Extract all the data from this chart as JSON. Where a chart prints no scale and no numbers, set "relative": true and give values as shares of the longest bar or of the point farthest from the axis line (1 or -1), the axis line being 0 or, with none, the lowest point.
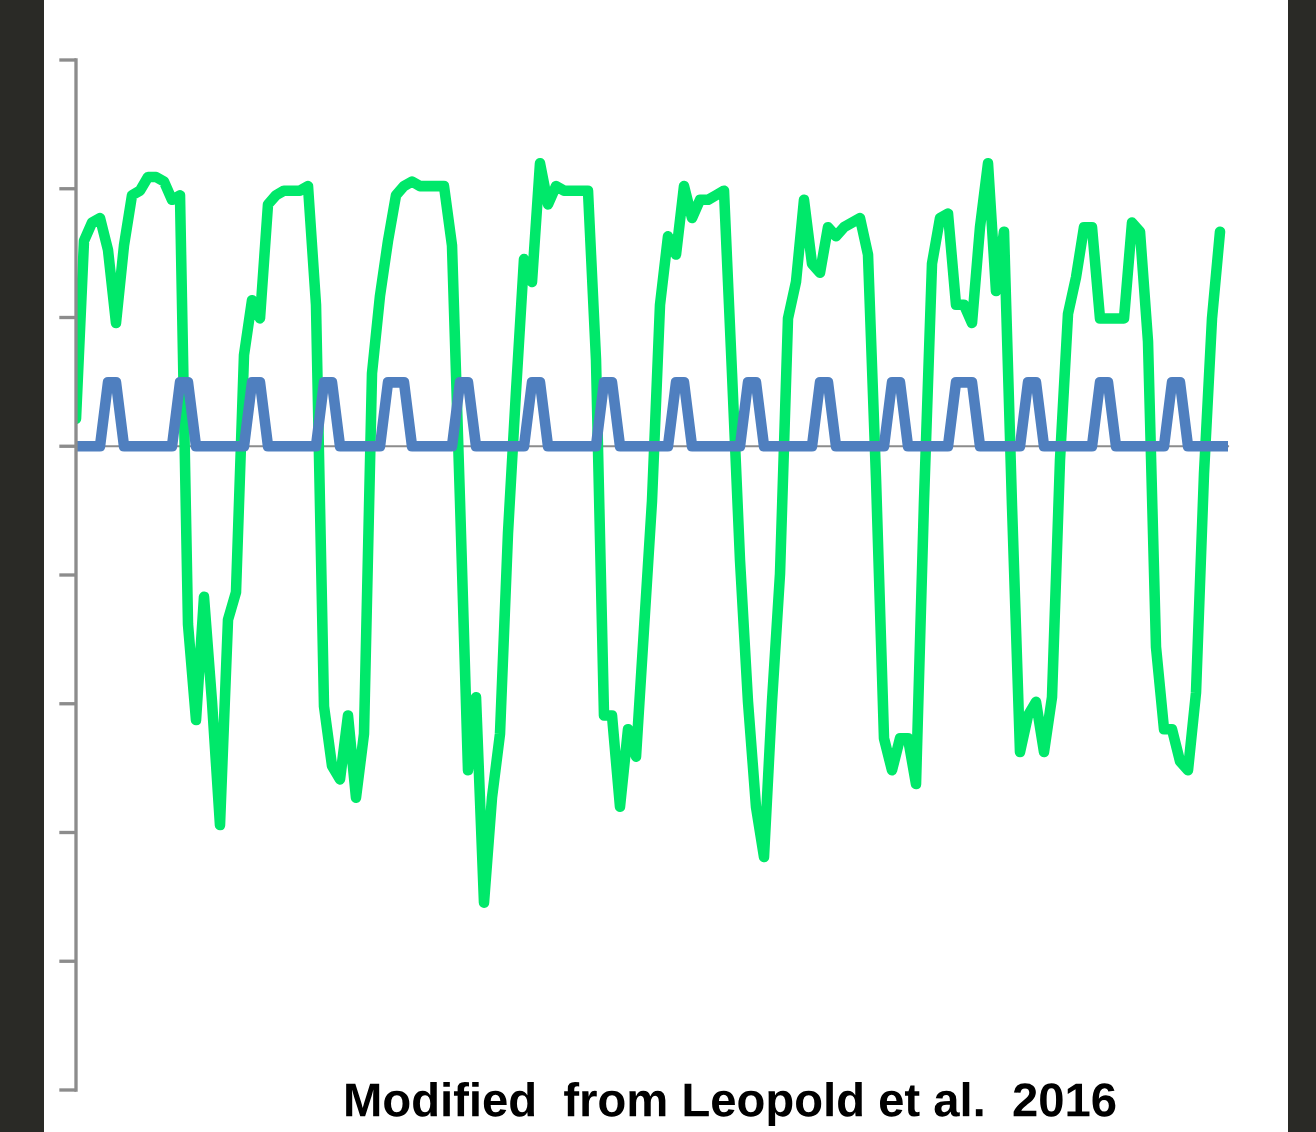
{
  "chart_data": {
    "type": "line",
    "relative": true,
    "grid": false,
    "legend": false,
    "marker": "none",
    "line_style": "solid",
    "annotations": [
      "Modified  from Leopold et al.  2016"
    ],
    "categories": [
      null,
      null,
      null,
      null,
      null,
      null,
      null,
      null,
      null,
      null,
      null,
      null,
      null,
      null,
      null,
      null,
      null,
      null,
      null,
      null,
      null,
      null,
      null,
      null,
      null,
      null,
      null,
      null,
      null,
      null,
      null,
      null,
      null,
      null,
      null,
      null,
      null,
      null,
      null,
      null,
      null,
      null,
      null,
      null,
      null,
      null,
      null,
      null,
      null,
      null,
      null,
      null,
      null,
      null,
      null,
      null,
      null,
      null,
      null,
      null,
      null,
      null,
      null,
      null,
      null,
      null,
      null,
      null,
      null,
      null,
      null,
      null,
      null,
      null,
      null,
      null,
      null,
      null,
      null,
      null,
      null,
      null,
      null,
      null,
      null,
      null,
      null,
      null,
      null,
      null,
      null,
      null,
      null,
      null,
      null,
      null,
      null,
      null,
      null,
      null,
      null,
      null,
      null,
      null,
      null,
      null,
      null,
      null,
      null,
      null,
      null,
      null,
      null,
      null,
      null,
      null,
      null,
      null,
      null,
      null,
      null,
      null,
      null,
      null,
      null,
      null,
      null,
      null,
      null,
      null,
      null,
      null,
      null,
      null,
      null,
      null,
      null,
      null,
      null,
      null,
      null,
      null,
      null,
      null,
      null
    ],
    "series": [
      {
        "color": "#00e86a",
        "values": [
          0.06,
          0.45,
          0.49,
          0.5,
          0.43,
          0.27,
          0.44,
          0.55,
          0.56,
          0.59,
          0.59,
          0.58,
          0.54,
          0.55,
          -0.39,
          -0.6,
          -0.33,
          -0.56,
          -0.83,
          -0.38,
          -0.32,
          0.2,
          0.32,
          0.28,
          0.53,
          0.55,
          0.56,
          0.56,
          0.56,
          0.57,
          0.31,
          -0.57,
          -0.7,
          -0.73,
          -0.59,
          -0.77,
          -0.63,
          0.16,
          0.33,
          0.45,
          0.55,
          0.57,
          0.58,
          0.57,
          0.57,
          0.57,
          0.57,
          0.44,
          -0.12,
          -0.71,
          -0.55,
          -1,
          -0.77,
          -0.63,
          -0.19,
          0.12,
          0.41,
          0.36,
          0.62,
          0.53,
          0.57,
          0.56,
          0.56,
          0.56,
          0.56,
          0.19,
          -0.59,
          -0.59,
          -0.79,
          -0.62,
          -0.68,
          -0.4,
          -0.12,
          0.31,
          0.46,
          0.42,
          0.57,
          0.5,
          0.54,
          0.54,
          0.55,
          0.56,
          0.16,
          -0.25,
          -0.56,
          -0.79,
          -0.9,
          -0.56,
          -0.28,
          0.28,
          0.36,
          0.54,
          0.4,
          0.38,
          0.48,
          0.46,
          0.48,
          0.49,
          0.5,
          0.42,
          -0.07,
          -0.64,
          -0.71,
          -0.64,
          -0.64,
          -0.74,
          -0.12,
          0.4,
          0.5,
          0.51,
          0.31,
          0.31,
          0.27,
          0.48,
          0.62,
          0.34,
          0.47,
          -0.13,
          -0.67,
          -0.59,
          -0.56,
          -0.67,
          -0.55,
          -0.03,
          0.29,
          0.37,
          0.48,
          0.48,
          0.28,
          0.28,
          0.28,
          0.28,
          0.49,
          0.47,
          0.23,
          -0.44,
          -0.62,
          -0.62,
          -0.69,
          -0.71,
          -0.54,
          -0.06,
          0.28,
          0.47,
          null
        ]
      },
      {
        "color": "#4f7fbf",
        "values": [
          0,
          0,
          0,
          0,
          0.14,
          0.14,
          0,
          0,
          0,
          0,
          0,
          0,
          0,
          0.14,
          0.14,
          0,
          0,
          0,
          0,
          0,
          0,
          0,
          0.14,
          0.14,
          0,
          0,
          0,
          0,
          0,
          0,
          0,
          0.14,
          0.14,
          0,
          0,
          0,
          0,
          0,
          0,
          0.14,
          0.14,
          0.14,
          0,
          0,
          0,
          0,
          0,
          0,
          0.14,
          0.14,
          0,
          0,
          0,
          0,
          0,
          0,
          0,
          0.14,
          0.14,
          0,
          0,
          0,
          0,
          0,
          0,
          0,
          0.14,
          0.14,
          0,
          0,
          0,
          0,
          0,
          0,
          0,
          0.14,
          0.14,
          0,
          0,
          0,
          0,
          0,
          0,
          0,
          0.14,
          0.14,
          0,
          0,
          0,
          0,
          0,
          0,
          0,
          0.14,
          0.14,
          0,
          0,
          0,
          0,
          0,
          0,
          0,
          0.14,
          0.14,
          0,
          0,
          0,
          0,
          0,
          0,
          0.14,
          0.14,
          0.14,
          0,
          0,
          0,
          0,
          0,
          0,
          0.14,
          0.14,
          0,
          0,
          0,
          0,
          0,
          0,
          0,
          0.14,
          0.14,
          0,
          0,
          0,
          0,
          0,
          0,
          0,
          0.14,
          0.14,
          0,
          0,
          0,
          0,
          0,
          0
        ]
      }
    ]
  }
}
